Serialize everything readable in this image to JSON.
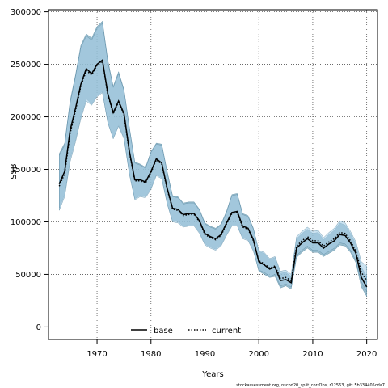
{
  "chart_data": {
    "type": "line",
    "title": "",
    "xlabel": "Years",
    "ylabel": "SSB",
    "xlim": [
      1961,
      2022
    ],
    "ylim": [
      -12000,
      302000
    ],
    "x_ticks": [
      1970,
      1980,
      1990,
      2000,
      2010,
      2020
    ],
    "y_ticks": [
      0,
      50000,
      100000,
      150000,
      200000,
      250000,
      300000
    ],
    "grid": true,
    "legend_placement": "bottom-center",
    "footnote": "stockassessment.org, nscod20_split_corrObs, r12563, git: 5b334405cda7",
    "colors": {
      "band_base": "#6c9fb8",
      "band_current": "#a8cfe6",
      "line_base": "#000000",
      "line_current": "#000000"
    },
    "x": [
      1963,
      1964,
      1965,
      1966,
      1967,
      1968,
      1969,
      1970,
      1971,
      1972,
      1973,
      1974,
      1975,
      1976,
      1977,
      1978,
      1979,
      1980,
      1981,
      1982,
      1983,
      1984,
      1985,
      1986,
      1987,
      1988,
      1989,
      1990,
      1991,
      1992,
      1993,
      1994,
      1995,
      1996,
      1997,
      1998,
      1999,
      2000,
      2001,
      2002,
      2003,
      2004,
      2005,
      2006,
      2007,
      2008,
      2009,
      2010,
      2011,
      2012,
      2013,
      2014,
      2015,
      2016,
      2017,
      2018,
      2019,
      2020
    ],
    "series": [
      {
        "name": "base",
        "style": "solid",
        "values": [
          136000,
          148000,
          187000,
          208000,
          231000,
          246000,
          241000,
          250000,
          254000,
          222000,
          204000,
          215000,
          203000,
          167000,
          140000,
          140000,
          138000,
          148000,
          160000,
          156000,
          132000,
          113000,
          112000,
          107000,
          108000,
          108000,
          101000,
          89000,
          86000,
          84000,
          88000,
          99000,
          109000,
          110000,
          96000,
          94000,
          83000,
          62000,
          59000,
          55000,
          57000,
          44000,
          45000,
          42000,
          75000,
          80000,
          84000,
          80000,
          80000,
          75000,
          79000,
          82000,
          88000,
          87000,
          80000,
          70000,
          47000,
          38000
        ],
        "lower": [
          113000,
          126000,
          160000,
          178000,
          200000,
          217000,
          212000,
          220000,
          224000,
          195000,
          180000,
          192000,
          180000,
          146000,
          122000,
          125000,
          124000,
          132000,
          145000,
          142000,
          118000,
          101000,
          100000,
          96000,
          97000,
          97000,
          90000,
          79000,
          76000,
          74000,
          78000,
          88000,
          97000,
          97000,
          85000,
          83000,
          73000,
          53000,
          50000,
          47000,
          48000,
          37000,
          39000,
          36000,
          66000,
          71000,
          75000,
          71000,
          71000,
          67000,
          70000,
          73000,
          78000,
          77000,
          71000,
          61000,
          38000,
          29000
        ],
        "upper": [
          165000,
          175000,
          215000,
          240000,
          268000,
          279000,
          275000,
          286000,
          291000,
          254000,
          229000,
          243000,
          226000,
          190000,
          157000,
          155000,
          152000,
          167000,
          175000,
          174000,
          148000,
          125000,
          124000,
          118000,
          119000,
          119000,
          112000,
          99000,
          96000,
          94000,
          98000,
          110000,
          126000,
          127000,
          108000,
          106000,
          94000,
          72000,
          70000,
          64000,
          66000,
          51000,
          52000,
          48000,
          84000,
          89000,
          93000,
          89000,
          90000,
          83000,
          88000,
          92000,
          99000,
          97000,
          89000,
          79000,
          57000,
          48000
        ]
      },
      {
        "name": "current",
        "style": "dotted",
        "values": [
          134000,
          146000,
          184000,
          206000,
          229000,
          244000,
          240000,
          249000,
          253000,
          221000,
          203000,
          214000,
          202000,
          166000,
          139000,
          139000,
          137000,
          147000,
          159000,
          155000,
          131000,
          112000,
          111000,
          106000,
          107000,
          107000,
          100000,
          88000,
          85000,
          83000,
          87000,
          98000,
          108000,
          109000,
          95000,
          93000,
          82000,
          63000,
          60000,
          56000,
          58000,
          46000,
          47000,
          44000,
          77000,
          82000,
          86000,
          82000,
          82000,
          77000,
          81000,
          84000,
          90000,
          89000,
          82000,
          72000,
          52000,
          44000
        ],
        "lower": [
          111000,
          124000,
          157000,
          176000,
          198000,
          215000,
          211000,
          219000,
          223000,
          194000,
          179000,
          191000,
          179000,
          145000,
          121000,
          124000,
          123000,
          131000,
          144000,
          141000,
          117000,
          100000,
          99000,
          95000,
          96000,
          96000,
          89000,
          78000,
          75000,
          73000,
          77000,
          87000,
          96000,
          96000,
          84000,
          82000,
          72000,
          54000,
          52000,
          48000,
          50000,
          39000,
          41000,
          38000,
          68000,
          73000,
          77000,
          73000,
          73000,
          69000,
          72000,
          75000,
          80000,
          79000,
          73000,
          63000,
          43000,
          34000
        ],
        "upper": [
          163000,
          173000,
          213000,
          238000,
          266000,
          277000,
          273000,
          284000,
          289000,
          252000,
          228000,
          241000,
          225000,
          189000,
          156000,
          154000,
          151000,
          166000,
          174000,
          173000,
          147000,
          124000,
          123000,
          117000,
          118000,
          118000,
          111000,
          98000,
          95000,
          93000,
          97000,
          109000,
          125000,
          126000,
          107000,
          105000,
          93000,
          73000,
          71000,
          65000,
          67000,
          53000,
          54000,
          50000,
          86000,
          91000,
          95000,
          91000,
          92000,
          85000,
          90000,
          94000,
          101000,
          99000,
          91000,
          81000,
          62000,
          58000
        ]
      }
    ]
  }
}
